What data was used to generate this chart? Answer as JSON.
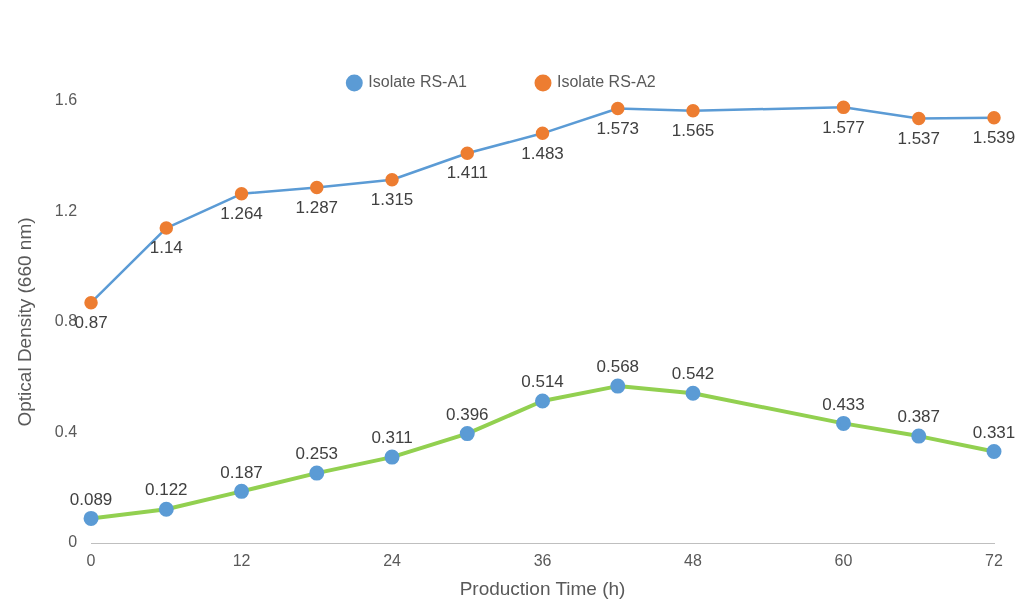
{
  "chart_data": {
    "type": "line",
    "xlabel": "Production Time (h)",
    "ylabel": "Optical Density (660 nm)",
    "x": [
      0,
      6,
      12,
      18,
      24,
      30,
      36,
      42,
      48,
      60,
      66,
      72
    ],
    "series": [
      {
        "name": "Isolate RS-A1",
        "color": "#92d050",
        "colors": [
          "#5b9bd5",
          "#5b9bd5",
          "#5b9bd5",
          "#5b9bd5",
          "#5b9bd5",
          "#5b9bd5",
          "#5b9bd5",
          "#5b9bd5",
          "#5b9bd5",
          "#5b9bd5",
          "#5b9bd5",
          "#5b9bd5"
        ],
        "values": [
          0.089,
          0.122,
          0.187,
          0.253,
          0.311,
          0.396,
          0.514,
          0.568,
          0.542,
          0.433,
          0.387,
          0.331
        ]
      },
      {
        "name": "Isolate RS-A2",
        "color": "#5b9bd5",
        "colors": [
          "#ed7d31",
          "#ed7d31",
          "#ed7d31",
          "#ed7d31",
          "#ed7d31",
          "#ed7d31",
          "#ed7d31",
          "#ed7d31",
          "#ed7d31",
          "#ed7d31",
          "#ed7d31",
          "#ed7d31"
        ],
        "values": [
          0.87,
          1.14,
          1.264,
          1.287,
          1.315,
          1.411,
          1.483,
          1.573,
          1.565,
          1.577,
          1.537,
          1.539
        ]
      }
    ],
    "xlim": [
      0,
      72
    ],
    "xticks": [
      0,
      12,
      24,
      36,
      48,
      60,
      72
    ],
    "ylim": [
      0,
      1.6
    ],
    "yticks": [
      0,
      0.4,
      0.8,
      1.2,
      1.6
    ],
    "grid": false,
    "legend": "top",
    "marker": "circle",
    "line_style": "solid",
    "data_labels": true
  }
}
